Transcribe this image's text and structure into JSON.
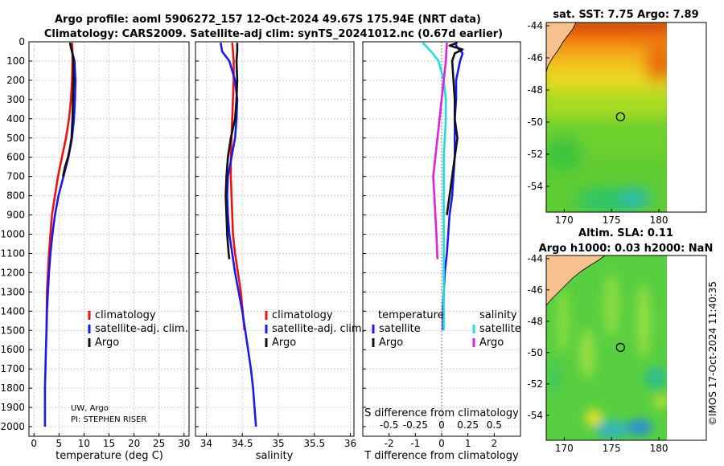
{
  "title": {
    "line1": "Argo profile: aoml 5906272_157 12-Oct-2024 49.67S 175.94E (NRT data)",
    "line2": "Climatology: CARS2009. Satellite-adj clim: synTS_20241012.nc (0.67d earlier)"
  },
  "credit": {
    "line1": "UW, Argo",
    "line2": "PI: STEPHEN RISER"
  },
  "watermark": "©IMOS 17-Oct-2024 11:40:35",
  "colors": {
    "climatology": "#ee1111",
    "satellite": "#1a1aee",
    "argo": "#111111",
    "sat_salinity": "#22dddd",
    "argo_salinity": "#dd22dd"
  },
  "chart_data": [
    {
      "type": "line",
      "name": "temperature-profile",
      "xlabel": "temperature (deg C)",
      "xlim": [
        -1,
        31
      ],
      "xticks": [
        0,
        5,
        10,
        15,
        20,
        25,
        30
      ],
      "ylim": [
        2050,
        0
      ],
      "yticks": [
        0,
        100,
        200,
        300,
        400,
        500,
        600,
        700,
        800,
        900,
        1000,
        1100,
        1200,
        1300,
        1400,
        1500,
        1600,
        1700,
        1800,
        1900,
        2000
      ],
      "legend": [
        "climatology",
        "satellite-adj. clim.",
        "Argo"
      ],
      "series": [
        {
          "name": "climatology",
          "color": "#ee1111",
          "x": [
            7.6,
            7.7,
            7.7,
            7.6,
            7.4,
            7.0,
            6.4,
            5.6,
            4.8,
            4.2,
            3.6,
            3.3,
            3.0,
            2.8,
            2.6,
            2.5
          ],
          "y": [
            5,
            50,
            100,
            200,
            300,
            400,
            500,
            600,
            700,
            800,
            900,
            1000,
            1100,
            1200,
            1300,
            1500
          ]
        },
        {
          "name": "satellite-adj. clim.",
          "color": "#1a1aee",
          "x": [
            7.2,
            7.6,
            8.1,
            8.3,
            8.2,
            8.0,
            7.6,
            6.9,
            5.9,
            4.9,
            4.2,
            3.7,
            3.3,
            3.0,
            2.8,
            2.6,
            2.5,
            2.4,
            2.3,
            2.2,
            2.2
          ],
          "y": [
            5,
            50,
            100,
            200,
            300,
            400,
            500,
            600,
            700,
            800,
            900,
            1000,
            1100,
            1200,
            1300,
            1400,
            1500,
            1600,
            1700,
            1800,
            2000
          ]
        },
        {
          "name": "Argo",
          "color": "#111111",
          "x": [
            7.2,
            7.4,
            7.7,
            7.9,
            7.9,
            7.8,
            7.7,
            7.5,
            7.2,
            6.8,
            6.2,
            5.8
          ],
          "y": [
            5,
            30,
            60,
            100,
            200,
            300,
            400,
            500,
            550,
            600,
            650,
            700
          ]
        }
      ]
    },
    {
      "type": "line",
      "name": "salinity-profile",
      "xlabel": "salinity",
      "xlim": [
        33.85,
        36.05
      ],
      "xticks": [
        34,
        34.5,
        35,
        35.5,
        36
      ],
      "xticklabels": [
        "34",
        "34.5",
        "35",
        "35.5",
        "36"
      ],
      "ylim": [
        2050,
        0
      ],
      "legend": [
        "climatology",
        "satellite-adj. clim.",
        "Argo"
      ],
      "series": [
        {
          "name": "climatology",
          "color": "#ee1111",
          "x": [
            34.36,
            34.37,
            34.38,
            34.38,
            34.37,
            34.36,
            34.35,
            34.34,
            34.34,
            34.35,
            34.36,
            34.37,
            34.4,
            34.44,
            34.48,
            34.53
          ],
          "y": [
            5,
            50,
            100,
            200,
            300,
            400,
            500,
            600,
            700,
            800,
            900,
            1000,
            1100,
            1200,
            1300,
            1500
          ]
        },
        {
          "name": "satellite-adj. clim.",
          "color": "#1a1aee",
          "x": [
            34.2,
            34.22,
            34.32,
            34.4,
            34.43,
            34.42,
            34.4,
            34.35,
            34.3,
            34.29,
            34.3,
            34.32,
            34.36,
            34.4,
            34.45,
            34.5,
            34.54,
            34.58,
            34.62,
            34.65,
            34.69
          ],
          "y": [
            5,
            50,
            100,
            200,
            300,
            400,
            500,
            600,
            700,
            800,
            900,
            1000,
            1100,
            1200,
            1300,
            1400,
            1500,
            1600,
            1700,
            1800,
            2000
          ]
        },
        {
          "name": "Argo",
          "color": "#111111",
          "x": [
            34.43,
            34.43,
            34.42,
            34.43,
            34.42,
            34.4,
            34.34,
            34.3,
            34.28,
            34.27,
            34.28,
            34.29,
            34.31,
            34.32
          ],
          "y": [
            5,
            50,
            100,
            200,
            300,
            400,
            500,
            600,
            700,
            800,
            900,
            1000,
            1100,
            1130
          ]
        }
      ]
    },
    {
      "type": "line",
      "name": "difference-from-climatology",
      "xlabel": "T difference from climatology",
      "xlim": [
        -3,
        3
      ],
      "xticks": [
        -2,
        -1,
        0,
        1,
        2
      ],
      "sxlabel": "S difference from climatology",
      "sxlim": [
        -0.75,
        0.75
      ],
      "sxticks": [
        -0.5,
        -0.25,
        0,
        0.25,
        0.5
      ],
      "sxticklabels": [
        "-0.5",
        "-0.25",
        "0",
        "0.25",
        "0.5"
      ],
      "ylim": [
        2050,
        0
      ],
      "legend_temperature": {
        "heading": "temperature",
        "items": [
          "satellite",
          "Argo"
        ]
      },
      "legend_salinity": {
        "heading": "salinity",
        "items": [
          "satellite",
          "Argo"
        ]
      },
      "series": [
        {
          "name": "temperature satellite",
          "color": "#1a1aee",
          "x": [
            0.5,
            0.6,
            0.8,
            0.7,
            0.55,
            0.55,
            0.5,
            0.5,
            0.5,
            0.45,
            0.4,
            0.3,
            0.25,
            0.2,
            0.12,
            0.08,
            0.05,
            0.05
          ],
          "y": [
            5,
            30,
            60,
            100,
            200,
            300,
            400,
            500,
            600,
            700,
            800,
            900,
            1000,
            1100,
            1200,
            1300,
            1400,
            1500
          ]
        },
        {
          "name": "temperature Argo",
          "color": "#111111",
          "x": [
            0.6,
            0.3,
            0.8,
            0.5,
            0.4,
            0.45,
            0.5,
            0.5,
            0.6,
            0.5,
            0.4,
            0.3,
            0.2
          ],
          "y": [
            5,
            20,
            40,
            60,
            100,
            200,
            300,
            400,
            500,
            600,
            700,
            800,
            900
          ]
        },
        {
          "name": "salinity satellite",
          "color": "#22dddd",
          "x": [
            -0.18,
            -0.1,
            -0.03,
            0.02,
            0.04,
            0.04,
            0.03,
            0.02,
            0.02,
            0.02,
            0.02,
            0.02,
            0.02,
            0.02,
            0.02,
            0.02,
            0.02
          ],
          "y": [
            5,
            50,
            100,
            200,
            300,
            400,
            500,
            600,
            700,
            800,
            900,
            1000,
            1100,
            1200,
            1300,
            1400,
            1500
          ]
        },
        {
          "name": "salinity Argo",
          "color": "#dd22dd",
          "x": [
            0.05,
            0.04,
            0.02,
            -0.02,
            -0.04,
            -0.06,
            -0.08,
            -0.07,
            -0.06,
            -0.05,
            -0.04
          ],
          "y": [
            5,
            100,
            200,
            400,
            500,
            600,
            700,
            800,
            900,
            1000,
            1130
          ]
        }
      ]
    },
    {
      "type": "heatmap",
      "name": "satellite-sst-map",
      "title": "sat. SST: 7.75 Argo: 7.89",
      "xticks": [
        170,
        175,
        180
      ],
      "yticks": [
        -44,
        -46,
        -48,
        -50,
        -52,
        -54
      ],
      "xlim": [
        168.1,
        185
      ],
      "ylim": [
        -55.6,
        -43.8
      ],
      "marker": {
        "lon": 175.94,
        "lat": -49.67
      }
    },
    {
      "type": "heatmap",
      "name": "altimetry-sla-map",
      "title1": "Altim. SLA: 0.11",
      "title2": "Argo h1000: 0.03 h2000: NaN",
      "xticks": [
        170,
        175,
        180
      ],
      "yticks": [
        -44,
        -46,
        -48,
        -50,
        -52,
        -54
      ],
      "xlim": [
        168.1,
        185
      ],
      "ylim": [
        -55.6,
        -43.8
      ],
      "marker": {
        "lon": 175.94,
        "lat": -49.67
      }
    }
  ]
}
